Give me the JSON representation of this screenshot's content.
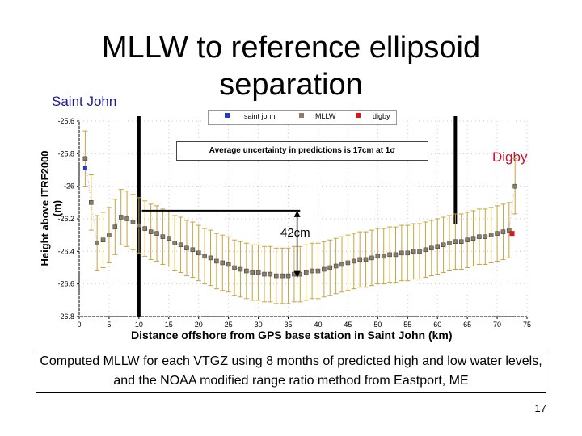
{
  "slide": {
    "title": "MLLW to reference ellipsoid separation",
    "left_label": "Saint John",
    "right_label": "Digby",
    "caption": "Computed MLLW for each VTGZ using 8 months of predicted high and low water levels, and the NOAA modified range ratio method from Eastport, ME",
    "page_number": "17"
  },
  "chart_data": {
    "type": "line",
    "xlabel": "Distance offshore from GPS base station in Saint John (km)",
    "ylabel": "Height above ITRF2000 (m)",
    "xlim": [
      0,
      75
    ],
    "ylim": [
      -26.8,
      -25.6
    ],
    "xticks": [
      0,
      5,
      10,
      15,
      20,
      25,
      30,
      35,
      40,
      45,
      50,
      55,
      60,
      65,
      70,
      75
    ],
    "yticks": [
      -25.6,
      -25.8,
      -26,
      -26.2,
      -26.4,
      -26.6,
      -26.8
    ],
    "annotation": "Average uncertainty in predictions is 17cm at 1σ",
    "difference_label": "42cm",
    "legend": [
      "saint john",
      "MLLW",
      "digby"
    ],
    "colors": {
      "saint_john": "#1f3fbf",
      "mllw": "#8b7d6b",
      "digby": "#d11a1a",
      "errorbar": "#c8a43c"
    },
    "series": [
      {
        "name": "MLLW",
        "x": [
          1,
          2,
          3,
          4,
          5,
          6,
          7,
          8,
          9,
          10,
          11,
          12,
          13,
          14,
          15,
          16,
          17,
          18,
          19,
          20,
          21,
          22,
          23,
          24,
          25,
          26,
          27,
          28,
          29,
          30,
          31,
          32,
          33,
          34,
          35,
          36,
          37,
          38,
          39,
          40,
          41,
          42,
          43,
          44,
          45,
          46,
          47,
          48,
          49,
          50,
          51,
          52,
          53,
          54,
          55,
          56,
          57,
          58,
          59,
          60,
          61,
          62,
          63,
          64,
          65,
          66,
          67,
          68,
          69,
          70,
          71,
          72,
          73
        ],
        "y": [
          -25.83,
          -26.1,
          -26.35,
          -26.33,
          -26.3,
          -26.25,
          -26.19,
          -26.2,
          -26.22,
          -26.24,
          -26.26,
          -26.28,
          -26.29,
          -26.31,
          -26.32,
          -26.35,
          -26.36,
          -26.38,
          -26.39,
          -26.41,
          -26.43,
          -26.44,
          -26.46,
          -26.47,
          -26.48,
          -26.5,
          -26.51,
          -26.52,
          -26.53,
          -26.53,
          -26.54,
          -26.54,
          -26.55,
          -26.55,
          -26.55,
          -26.54,
          -26.54,
          -26.53,
          -26.52,
          -26.52,
          -26.51,
          -26.5,
          -26.49,
          -26.48,
          -26.47,
          -26.46,
          -26.45,
          -26.45,
          -26.44,
          -26.43,
          -26.43,
          -26.42,
          -26.42,
          -26.41,
          -26.41,
          -26.4,
          -26.4,
          -26.39,
          -26.38,
          -26.37,
          -26.36,
          -26.35,
          -26.34,
          -26.34,
          -26.33,
          -26.32,
          -26.31,
          -26.31,
          -26.3,
          -26.29,
          -26.28,
          -26.27,
          -26.0
        ],
        "error": 0.17
      },
      {
        "name": "saint john",
        "x": [
          1
        ],
        "y": [
          -25.89
        ]
      },
      {
        "name": "digby",
        "x": [
          72.5
        ],
        "y": [
          -26.29
        ]
      }
    ]
  }
}
